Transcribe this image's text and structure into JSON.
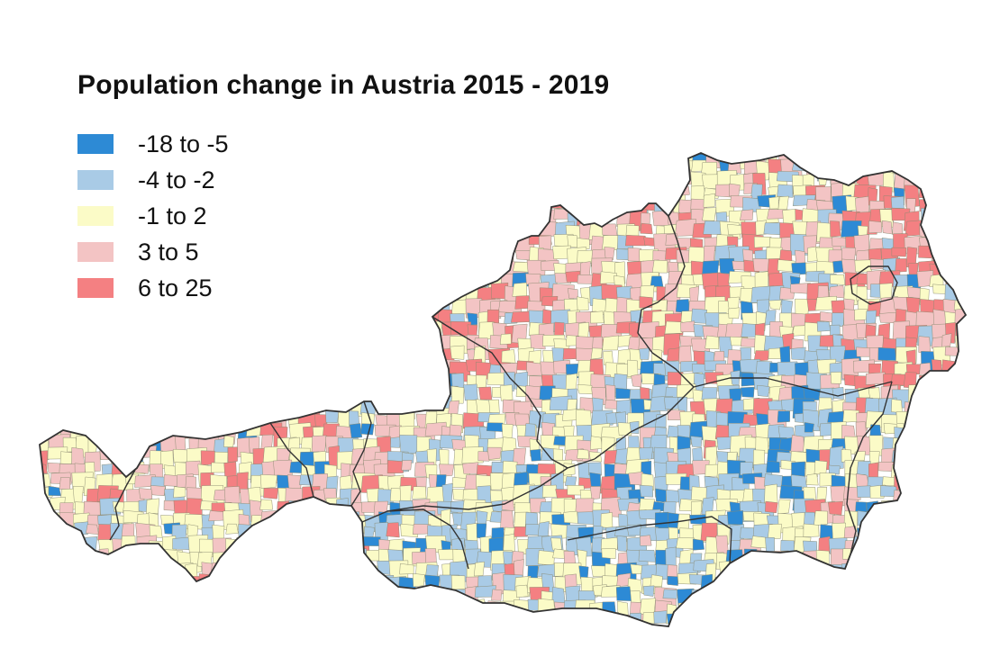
{
  "title": "Population change in Austria 2015 - 2019",
  "legend": [
    {
      "label": "-18 to -5",
      "color": "#2d8ad5"
    },
    {
      "label": "-4 to -2",
      "color": "#a9cbe6"
    },
    {
      "label": "-1 to 2",
      "color": "#fbfbc7"
    },
    {
      "label": "3 to 5",
      "color": "#f3c4c4"
    },
    {
      "label": "6 to 25",
      "color": "#f48082"
    }
  ],
  "map": {
    "region": "Austria",
    "unit": "municipalities",
    "border_color": "#333333",
    "muni_line_color": "#8a8a70"
  }
}
